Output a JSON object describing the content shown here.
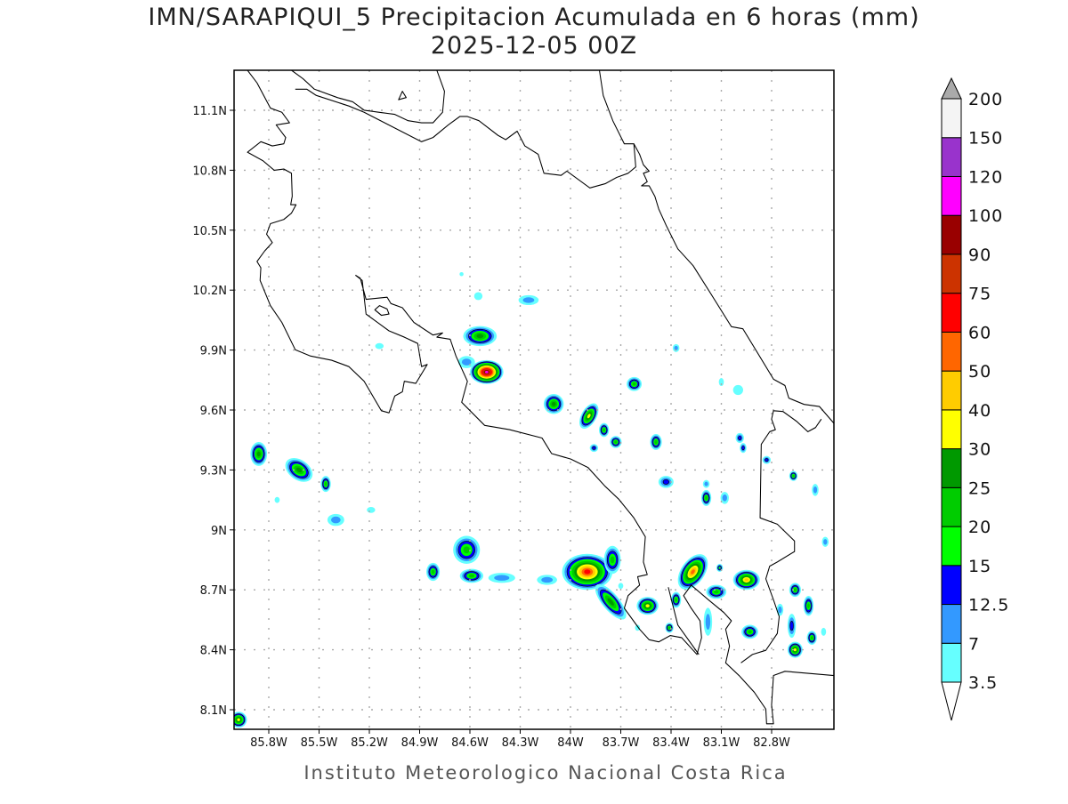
{
  "title": {
    "line1": "IMN/SARAPIQUI_5 Precipitacion Acumulada en 6 horas (mm)",
    "line2": "2025-12-05 00Z"
  },
  "footer": "Instituto Meteorologico Nacional Costa Rica",
  "axes": {
    "lon_labels": [
      "85.8W",
      "85.5W",
      "85.2W",
      "84.9W",
      "84.6W",
      "84.3W",
      "84W",
      "83.7W",
      "83.4W",
      "83.1W",
      "82.8W"
    ],
    "lon_values": [
      -85.8,
      -85.5,
      -85.2,
      -84.9,
      -84.6,
      -84.3,
      -84.0,
      -83.7,
      -83.4,
      -83.1,
      -82.8
    ],
    "lat_labels": [
      "11.1N",
      "10.8N",
      "10.5N",
      "10.2N",
      "9.9N",
      "9.6N",
      "9.3N",
      "9N",
      "8.7N",
      "8.4N",
      "8.1N"
    ],
    "lat_values": [
      11.1,
      10.8,
      10.5,
      10.2,
      9.9,
      9.6,
      9.3,
      9.0,
      8.7,
      8.4,
      8.1
    ]
  },
  "colorbar": {
    "labels": [
      "3.5",
      "7",
      "12.5",
      "15",
      "20",
      "25",
      "30",
      "40",
      "50",
      "60",
      "75",
      "90",
      "100",
      "120",
      "150",
      "200"
    ],
    "thresholds": [
      3.5,
      7,
      12.5,
      15,
      20,
      25,
      30,
      40,
      50,
      60,
      75,
      90,
      100,
      120,
      150,
      200
    ],
    "colors": [
      "#66ffff",
      "#3399ff",
      "#0000ff",
      "#00ff00",
      "#00cc00",
      "#009900",
      "#ffff00",
      "#ffcc00",
      "#ff6600",
      "#ff0000",
      "#cc3300",
      "#990000",
      "#ff00ff",
      "#9933cc",
      "#f4f4f4"
    ],
    "under_color": "#ffffff",
    "over_color": "#aaaaaa"
  },
  "precip_cells": [
    {
      "lon": -84.54,
      "lat": 9.97,
      "rx": 0.1,
      "ry": 0.05,
      "max": 27
    },
    {
      "lon": -84.5,
      "lat": 9.79,
      "rx": 0.1,
      "ry": 0.06,
      "max": 105
    },
    {
      "lon": -84.62,
      "lat": 9.84,
      "rx": 0.05,
      "ry": 0.03,
      "max": 8
    },
    {
      "lon": -84.25,
      "lat": 10.15,
      "rx": 0.06,
      "ry": 0.025,
      "max": 9
    },
    {
      "lon": -84.55,
      "lat": 10.17,
      "rx": 0.025,
      "ry": 0.02,
      "max": 4
    },
    {
      "lon": -84.65,
      "lat": 10.28,
      "rx": 0.012,
      "ry": 0.01,
      "max": 4
    },
    {
      "lon": -85.14,
      "lat": 9.92,
      "rx": 0.025,
      "ry": 0.015,
      "max": 4
    },
    {
      "lon": -83.37,
      "lat": 9.91,
      "rx": 0.02,
      "ry": 0.02,
      "max": 8
    },
    {
      "lon": -83.62,
      "lat": 9.73,
      "rx": 0.045,
      "ry": 0.035,
      "max": 22
    },
    {
      "lon": -84.1,
      "lat": 9.63,
      "rx": 0.06,
      "ry": 0.05,
      "max": 25
    },
    {
      "lon": -83.89,
      "lat": 9.57,
      "rx": 0.045,
      "ry": 0.07,
      "max": 32,
      "rot": 30
    },
    {
      "lon": -83.8,
      "lat": 9.5,
      "rx": 0.03,
      "ry": 0.035,
      "max": 21
    },
    {
      "lon": -83.73,
      "lat": 9.44,
      "rx": 0.035,
      "ry": 0.03,
      "max": 21
    },
    {
      "lon": -83.86,
      "lat": 9.41,
      "rx": 0.025,
      "ry": 0.02,
      "max": 13
    },
    {
      "lon": -83.49,
      "lat": 9.44,
      "rx": 0.035,
      "ry": 0.04,
      "max": 21
    },
    {
      "lon": -82.99,
      "lat": 9.46,
      "rx": 0.025,
      "ry": 0.025,
      "max": 13
    },
    {
      "lon": -82.97,
      "lat": 9.41,
      "rx": 0.02,
      "ry": 0.025,
      "max": 13
    },
    {
      "lon": -82.83,
      "lat": 9.35,
      "rx": 0.025,
      "ry": 0.02,
      "max": 13
    },
    {
      "lon": -82.67,
      "lat": 9.27,
      "rx": 0.025,
      "ry": 0.025,
      "max": 21
    },
    {
      "lon": -82.54,
      "lat": 9.2,
      "rx": 0.02,
      "ry": 0.03,
      "max": 9
    },
    {
      "lon": -83.43,
      "lat": 9.24,
      "rx": 0.045,
      "ry": 0.03,
      "max": 13
    },
    {
      "lon": -83.19,
      "lat": 9.16,
      "rx": 0.03,
      "ry": 0.04,
      "max": 21
    },
    {
      "lon": -83.08,
      "lat": 9.16,
      "rx": 0.025,
      "ry": 0.03,
      "max": 8
    },
    {
      "lon": -83.19,
      "lat": 9.23,
      "rx": 0.02,
      "ry": 0.02,
      "max": 8
    },
    {
      "lon": -83.0,
      "lat": 9.7,
      "rx": 0.03,
      "ry": 0.025,
      "max": 4
    },
    {
      "lon": -83.1,
      "lat": 9.74,
      "rx": 0.015,
      "ry": 0.02,
      "max": 4
    },
    {
      "lon": -85.86,
      "lat": 9.38,
      "rx": 0.05,
      "ry": 0.06,
      "max": 27
    },
    {
      "lon": -85.62,
      "lat": 9.3,
      "rx": 0.09,
      "ry": 0.05,
      "max": 27,
      "rot": 35
    },
    {
      "lon": -85.46,
      "lat": 9.23,
      "rx": 0.03,
      "ry": 0.04,
      "max": 21
    },
    {
      "lon": -85.4,
      "lat": 9.05,
      "rx": 0.05,
      "ry": 0.03,
      "max": 8
    },
    {
      "lon": -85.19,
      "lat": 9.1,
      "rx": 0.025,
      "ry": 0.015,
      "max": 4
    },
    {
      "lon": -85.75,
      "lat": 9.15,
      "rx": 0.015,
      "ry": 0.015,
      "max": 4
    },
    {
      "lon": -84.62,
      "lat": 8.9,
      "rx": 0.08,
      "ry": 0.07,
      "max": 22
    },
    {
      "lon": -84.59,
      "lat": 8.77,
      "rx": 0.07,
      "ry": 0.035,
      "max": 22
    },
    {
      "lon": -84.82,
      "lat": 8.79,
      "rx": 0.04,
      "ry": 0.045,
      "max": 22
    },
    {
      "lon": -84.41,
      "lat": 8.76,
      "rx": 0.08,
      "ry": 0.025,
      "max": 9
    },
    {
      "lon": -84.14,
      "lat": 8.75,
      "rx": 0.06,
      "ry": 0.025,
      "max": 9
    },
    {
      "lon": -83.9,
      "lat": 8.79,
      "rx": 0.15,
      "ry": 0.09,
      "max": 70
    },
    {
      "lon": -83.75,
      "lat": 8.85,
      "rx": 0.05,
      "ry": 0.07,
      "max": 22
    },
    {
      "lon": -83.76,
      "lat": 8.64,
      "rx": 0.05,
      "ry": 0.11,
      "max": 25,
      "rot": -40
    },
    {
      "lon": -83.54,
      "lat": 8.62,
      "rx": 0.065,
      "ry": 0.045,
      "max": 35
    },
    {
      "lon": -83.27,
      "lat": 8.79,
      "rx": 0.07,
      "ry": 0.1,
      "max": 55,
      "rot": 35
    },
    {
      "lon": -83.37,
      "lat": 8.65,
      "rx": 0.03,
      "ry": 0.04,
      "max": 22
    },
    {
      "lon": -83.41,
      "lat": 8.51,
      "rx": 0.025,
      "ry": 0.025,
      "max": 21
    },
    {
      "lon": -83.13,
      "lat": 8.69,
      "rx": 0.06,
      "ry": 0.035,
      "max": 22
    },
    {
      "lon": -83.11,
      "lat": 8.81,
      "rx": 0.02,
      "ry": 0.02,
      "max": 16
    },
    {
      "lon": -82.95,
      "lat": 8.75,
      "rx": 0.08,
      "ry": 0.05,
      "max": 45
    },
    {
      "lon": -83.18,
      "lat": 8.54,
      "rx": 0.025,
      "ry": 0.07,
      "max": 9
    },
    {
      "lon": -82.93,
      "lat": 8.49,
      "rx": 0.05,
      "ry": 0.035,
      "max": 22
    },
    {
      "lon": -82.66,
      "lat": 8.7,
      "rx": 0.035,
      "ry": 0.035,
      "max": 22
    },
    {
      "lon": -82.58,
      "lat": 8.62,
      "rx": 0.03,
      "ry": 0.05,
      "max": 22
    },
    {
      "lon": -82.68,
      "lat": 8.52,
      "rx": 0.025,
      "ry": 0.06,
      "max": 14
    },
    {
      "lon": -82.56,
      "lat": 8.46,
      "rx": 0.03,
      "ry": 0.035,
      "max": 21
    },
    {
      "lon": -82.66,
      "lat": 8.4,
      "rx": 0.045,
      "ry": 0.04,
      "max": 35
    },
    {
      "lon": -82.75,
      "lat": 8.6,
      "rx": 0.02,
      "ry": 0.03,
      "max": 9
    },
    {
      "lon": -82.48,
      "lat": 8.94,
      "rx": 0.02,
      "ry": 0.025,
      "max": 9
    },
    {
      "lon": -82.49,
      "lat": 8.49,
      "rx": 0.015,
      "ry": 0.02,
      "max": 4
    },
    {
      "lon": -83.6,
      "lat": 8.51,
      "rx": 0.015,
      "ry": 0.015,
      "max": 4
    },
    {
      "lon": -83.7,
      "lat": 8.72,
      "rx": 0.015,
      "ry": 0.015,
      "max": 4
    },
    {
      "lon": -85.98,
      "lat": 8.05,
      "rx": 0.05,
      "ry": 0.04,
      "max": 33
    }
  ]
}
